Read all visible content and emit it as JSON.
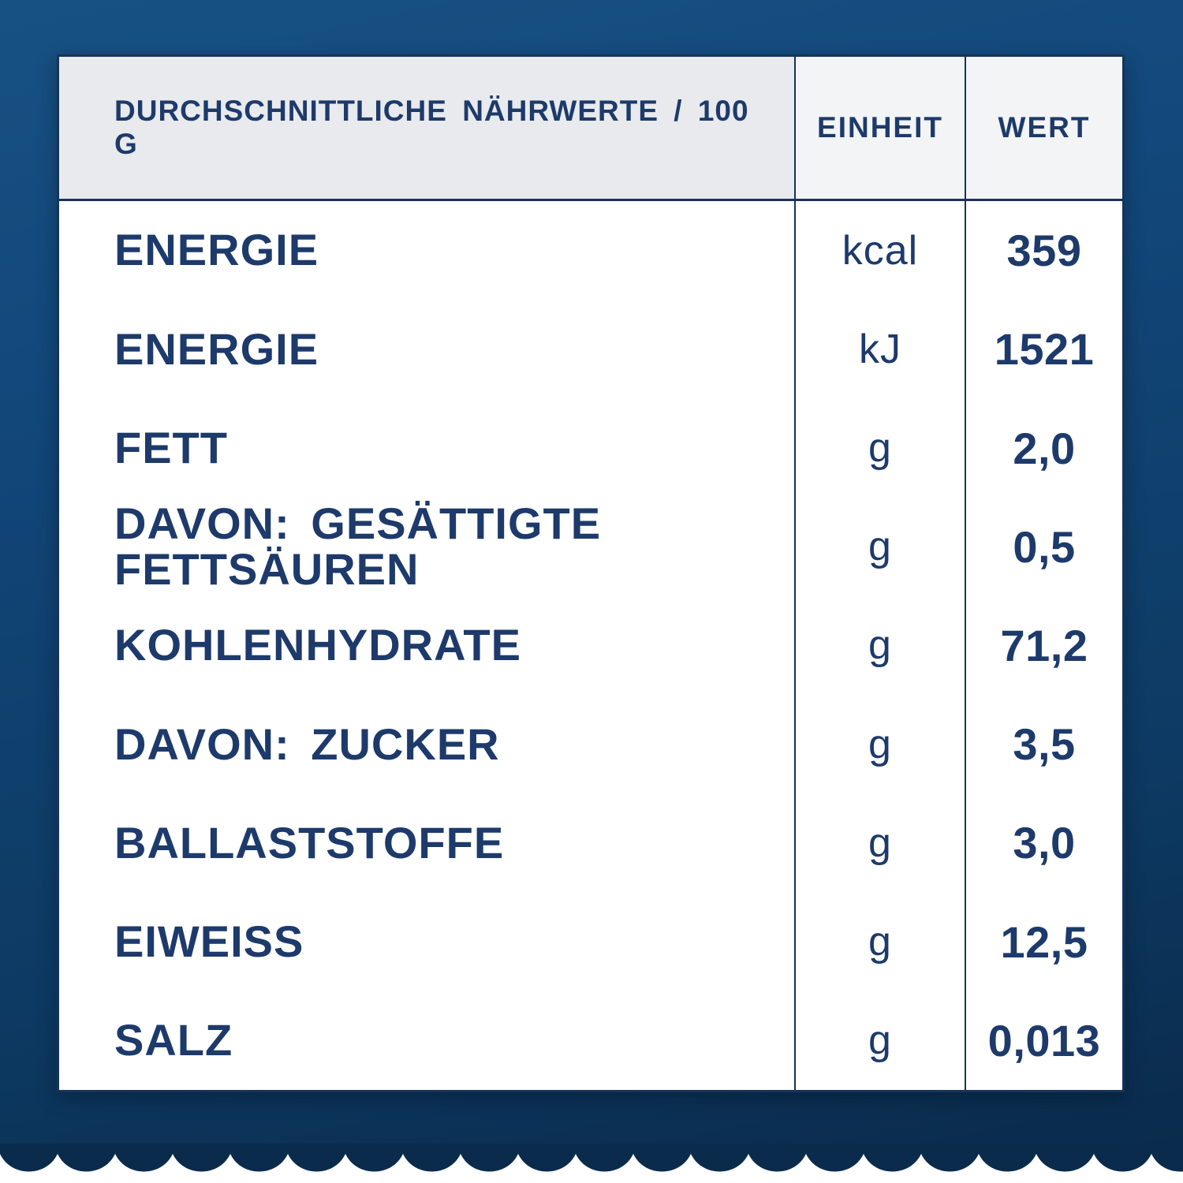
{
  "colors": {
    "background_top": "#175183",
    "background_mid": "#0d3a63",
    "background_bottom": "#0a2b4c",
    "card_background": "#ffffff",
    "header_label_background": "#e8eaed",
    "header_unit_value_background": "#f2f4f6",
    "divider": "#1c3156",
    "text_navy": "#1d3a6b"
  },
  "table": {
    "columns": [
      {
        "key": "label",
        "header": "DURCHSCHNITTLICHE NÄHRWERTE / 100 G"
      },
      {
        "key": "unit",
        "header": "EINHEIT"
      },
      {
        "key": "value",
        "header": "WERT"
      }
    ],
    "rows": [
      {
        "label": "ENERGIE",
        "unit": "kcal",
        "value": "359"
      },
      {
        "label": "ENERGIE",
        "unit": "kJ",
        "value": "1521"
      },
      {
        "label": "FETT",
        "unit": "g",
        "value": "2,0"
      },
      {
        "label": "DAVON: GESÄTTIGTE FETTSÄUREN",
        "unit": "g",
        "value": "0,5"
      },
      {
        "label": "KOHLENHYDRATE",
        "unit": "g",
        "value": "71,2"
      },
      {
        "label": "DAVON: ZUCKER",
        "unit": "g",
        "value": "3,5"
      },
      {
        "label": "BALLASTSTOFFE",
        "unit": "g",
        "value": "3,0"
      },
      {
        "label": "EIWEISS",
        "unit": "g",
        "value": "12,5"
      },
      {
        "label": "SALZ",
        "unit": "g",
        "value": "0,013"
      }
    ]
  }
}
